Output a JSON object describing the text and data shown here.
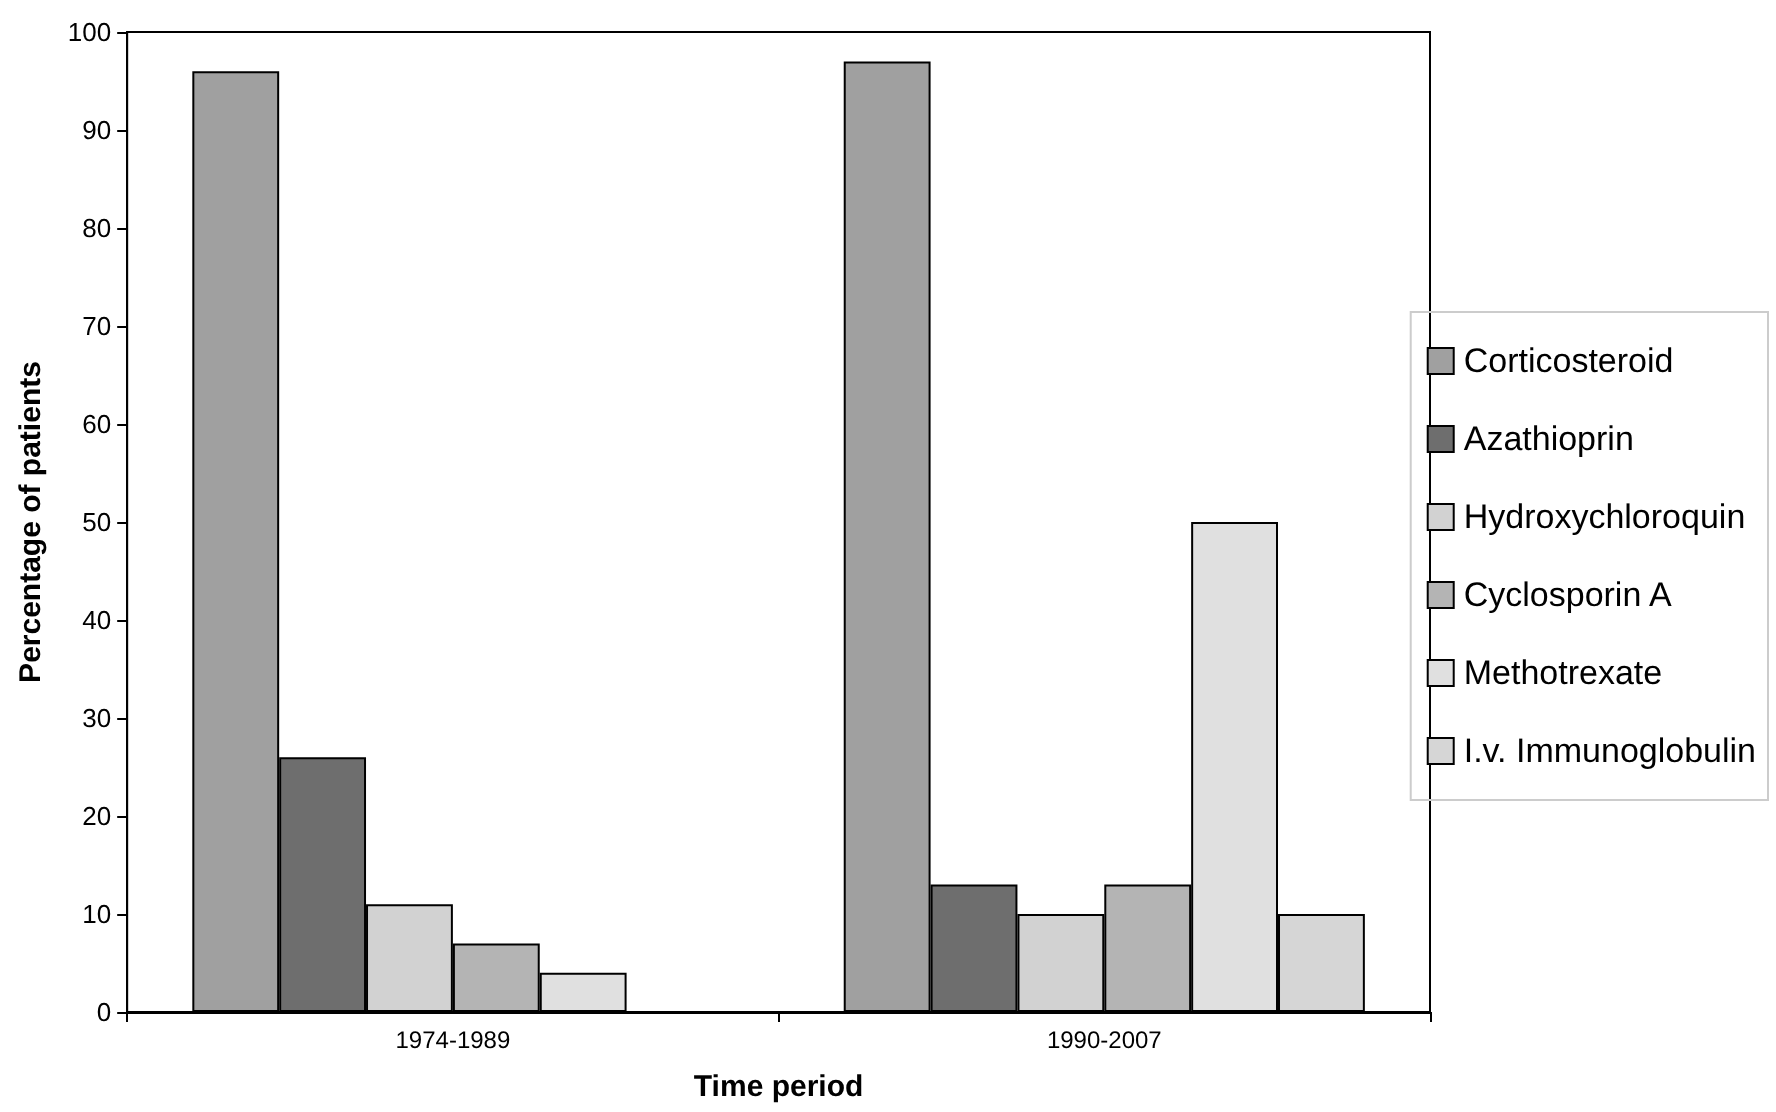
{
  "chart_data": {
    "type": "bar",
    "xlabel": "Time period",
    "ylabel": "Percentage of patients",
    "categories": [
      "1974-1989",
      "1990-2007"
    ],
    "series": [
      {
        "name": "Corticosteroid",
        "color": "#a0a0a0",
        "values": [
          96,
          97
        ]
      },
      {
        "name": "Azathioprin",
        "color": "#6e6e6e",
        "values": [
          26,
          13
        ]
      },
      {
        "name": "Hydroxychloroquin",
        "color": "#d2d2d2",
        "values": [
          11,
          10
        ]
      },
      {
        "name": "Cyclosporin A",
        "color": "#b4b4b4",
        "values": [
          7,
          13
        ]
      },
      {
        "name": "Methotrexate",
        "color": "#e0e0e0",
        "values": [
          4,
          50
        ]
      },
      {
        "name": "I.v. Immunoglobulin",
        "color": "#d6d6d6",
        "values": [
          null,
          10
        ]
      }
    ],
    "ylim": [
      0,
      100
    ],
    "yticks": [
      0,
      10,
      20,
      30,
      40,
      50,
      60,
      70,
      80,
      90,
      100
    ],
    "grid": false,
    "legend": "right"
  }
}
